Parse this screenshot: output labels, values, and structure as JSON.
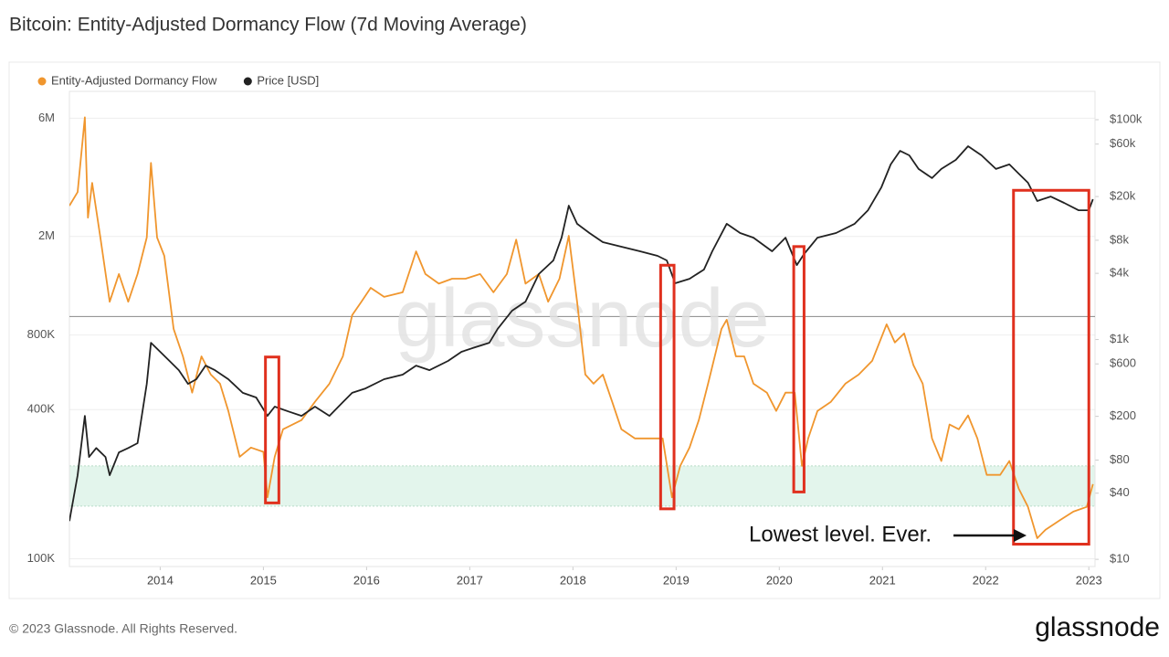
{
  "chart_data": {
    "type": "line",
    "title": "Bitcoin: Entity-Adjusted Dormancy Flow (7d Moving Average)",
    "footer": "© 2023 Glassnode. All Rights Reserved.",
    "logo": "glassnode",
    "watermark": "glassnode",
    "annotation": "Lowest level. Ever.",
    "log_scale": true,
    "grid": true,
    "legend_position": "top-left",
    "xlim": [
      2013.12,
      2023.06
    ],
    "xticks": [
      2014,
      2015,
      2016,
      2017,
      2018,
      2019,
      2020,
      2021,
      2022,
      2023
    ],
    "ylim": [
      93000,
      7700000
    ],
    "yticks": [
      {
        "value": 100000,
        "label": "100K"
      },
      {
        "value": 400000,
        "label": "400K"
      },
      {
        "value": 800000,
        "label": "800K"
      },
      {
        "value": 2000000,
        "label": "2M"
      },
      {
        "value": 6000000,
        "label": "6M"
      }
    ],
    "y2lim": [
      8.6,
      181000
    ],
    "y2ticks": [
      {
        "value": 10,
        "label": "$10"
      },
      {
        "value": 40,
        "label": "$40"
      },
      {
        "value": 80,
        "label": "$80"
      },
      {
        "value": 200,
        "label": "$200"
      },
      {
        "value": 600,
        "label": "$600"
      },
      {
        "value": 1000,
        "label": "$1k"
      },
      {
        "value": 4000,
        "label": "$4k"
      },
      {
        "value": 8000,
        "label": "$8k"
      },
      {
        "value": 20000,
        "label": "$20k"
      },
      {
        "value": 60000,
        "label": "$60k"
      },
      {
        "value": 100000,
        "label": "$100k"
      }
    ],
    "band": [
      163000,
      237000
    ],
    "band_color": "#e3f5ec",
    "reference_line": 950000,
    "box_color": "#e0301e",
    "highlight_boxes": [
      {
        "x": [
          2015.02,
          2015.15
        ],
        "y": [
          168000,
          652000
        ]
      },
      {
        "x": [
          2018.85,
          2018.98
        ],
        "y": [
          159000,
          1530000
        ]
      },
      {
        "x": [
          2020.14,
          2020.24
        ],
        "y": [
          186000,
          1820000
        ]
      },
      {
        "x": [
          2022.27,
          2023.0
        ],
        "y": [
          114500,
          3070000
        ]
      }
    ],
    "series": [
      {
        "name": "Entity-Adjusted Dormancy Flow",
        "color": "#f0962e",
        "x": [
          2013.12,
          2013.2,
          2013.27,
          2013.3,
          2013.34,
          2013.42,
          2013.51,
          2013.6,
          2013.69,
          2013.78,
          2013.87,
          2013.91,
          2013.97,
          2014.04,
          2014.13,
          2014.22,
          2014.31,
          2014.4,
          2014.49,
          2014.58,
          2014.66,
          2014.77,
          2014.88,
          2015.0,
          2015.04,
          2015.11,
          2015.19,
          2015.37,
          2015.5,
          2015.64,
          2015.77,
          2015.86,
          2015.95,
          2016.04,
          2016.17,
          2016.35,
          2016.48,
          2016.57,
          2016.7,
          2016.83,
          2016.96,
          2017.1,
          2017.23,
          2017.36,
          2017.45,
          2017.54,
          2017.67,
          2017.76,
          2017.87,
          2017.96,
          2018.04,
          2018.12,
          2018.2,
          2018.29,
          2018.38,
          2018.47,
          2018.6,
          2018.73,
          2018.87,
          2018.96,
          2019.04,
          2019.13,
          2019.22,
          2019.31,
          2019.44,
          2019.49,
          2019.58,
          2019.66,
          2019.75,
          2019.88,
          2019.97,
          2020.06,
          2020.15,
          2020.22,
          2020.28,
          2020.37,
          2020.5,
          2020.64,
          2020.77,
          2020.9,
          2021.04,
          2021.12,
          2021.21,
          2021.3,
          2021.39,
          2021.48,
          2021.57,
          2021.65,
          2021.74,
          2021.83,
          2021.92,
          2022.01,
          2022.14,
          2022.23,
          2022.32,
          2022.41,
          2022.5,
          2022.58,
          2022.72,
          2022.85,
          2022.98,
          2023.04
        ],
        "values": [
          2660000,
          3020000,
          6050000,
          2380000,
          3290000,
          1980000,
          1090000,
          1410000,
          1090000,
          1410000,
          1980000,
          3960000,
          1980000,
          1670000,
          847000,
          656000,
          468000,
          656000,
          554000,
          509000,
          395000,
          258000,
          281000,
          270000,
          177000,
          258000,
          333000,
          363000,
          430000,
          509000,
          656000,
          962000,
          1090000,
          1240000,
          1140000,
          1190000,
          1740000,
          1410000,
          1290000,
          1350000,
          1350000,
          1410000,
          1190000,
          1410000,
          1940000,
          1290000,
          1410000,
          1090000,
          1350000,
          2010000,
          1090000,
          554000,
          509000,
          554000,
          430000,
          333000,
          306000,
          306000,
          306000,
          177000,
          237000,
          281000,
          363000,
          509000,
          847000,
          922000,
          656000,
          656000,
          509000,
          468000,
          395000,
          468000,
          468000,
          237000,
          306000,
          395000,
          430000,
          509000,
          554000,
          629000,
          884000,
          746000,
          812000,
          604000,
          509000,
          306000,
          248000,
          348000,
          333000,
          379000,
          306000,
          218000,
          218000,
          248000,
          192000,
          162000,
          121000,
          131000,
          143000,
          155000,
          162000,
          200000
        ]
      },
      {
        "name": "Price [USD]",
        "color": "#222222",
        "axis": "y2",
        "x": [
          2013.12,
          2013.2,
          2013.27,
          2013.31,
          2013.38,
          2013.47,
          2013.51,
          2013.6,
          2013.69,
          2013.78,
          2013.87,
          2013.91,
          2014.0,
          2014.09,
          2014.18,
          2014.27,
          2014.35,
          2014.44,
          2014.53,
          2014.66,
          2014.8,
          2014.93,
          2015.04,
          2015.11,
          2015.24,
          2015.37,
          2015.5,
          2015.64,
          2015.77,
          2015.86,
          2015.99,
          2016.17,
          2016.35,
          2016.48,
          2016.61,
          2016.79,
          2016.92,
          2017.05,
          2017.19,
          2017.27,
          2017.41,
          2017.54,
          2017.67,
          2017.81,
          2017.89,
          2017.96,
          2018.04,
          2018.16,
          2018.29,
          2018.47,
          2018.65,
          2018.82,
          2018.91,
          2018.99,
          2019.13,
          2019.27,
          2019.35,
          2019.49,
          2019.62,
          2019.75,
          2019.93,
          2020.06,
          2020.17,
          2020.24,
          2020.37,
          2020.55,
          2020.73,
          2020.86,
          2020.99,
          2021.08,
          2021.17,
          2021.26,
          2021.35,
          2021.48,
          2021.57,
          2021.71,
          2021.83,
          2021.96,
          2022.1,
          2022.23,
          2022.32,
          2022.41,
          2022.5,
          2022.63,
          2022.76,
          2022.9,
          2023.0,
          2023.04
        ],
        "values": [
          22.3,
          58.2,
          202,
          85.4,
          103,
          85.4,
          58.2,
          94,
          103,
          114,
          395,
          935,
          773,
          638,
          526,
          395,
          435,
          579,
          526,
          435,
          327,
          297,
          202,
          245,
          222,
          202,
          245,
          202,
          269,
          327,
          359,
          435,
          479,
          579,
          526,
          638,
          773,
          849,
          935,
          1250,
          1830,
          2210,
          3940,
          5240,
          8450,
          16500,
          11300,
          9310,
          7690,
          6990,
          6350,
          5770,
          5240,
          3250,
          3570,
          4330,
          6350,
          11300,
          9310,
          8450,
          6350,
          8450,
          4760,
          6000,
          8450,
          9310,
          11300,
          15000,
          24300,
          39200,
          52100,
          47400,
          35600,
          29400,
          35600,
          43100,
          57400,
          47400,
          35600,
          39200,
          32300,
          26700,
          18200,
          20000,
          17500,
          15000,
          15000,
          18900
        ]
      }
    ]
  }
}
